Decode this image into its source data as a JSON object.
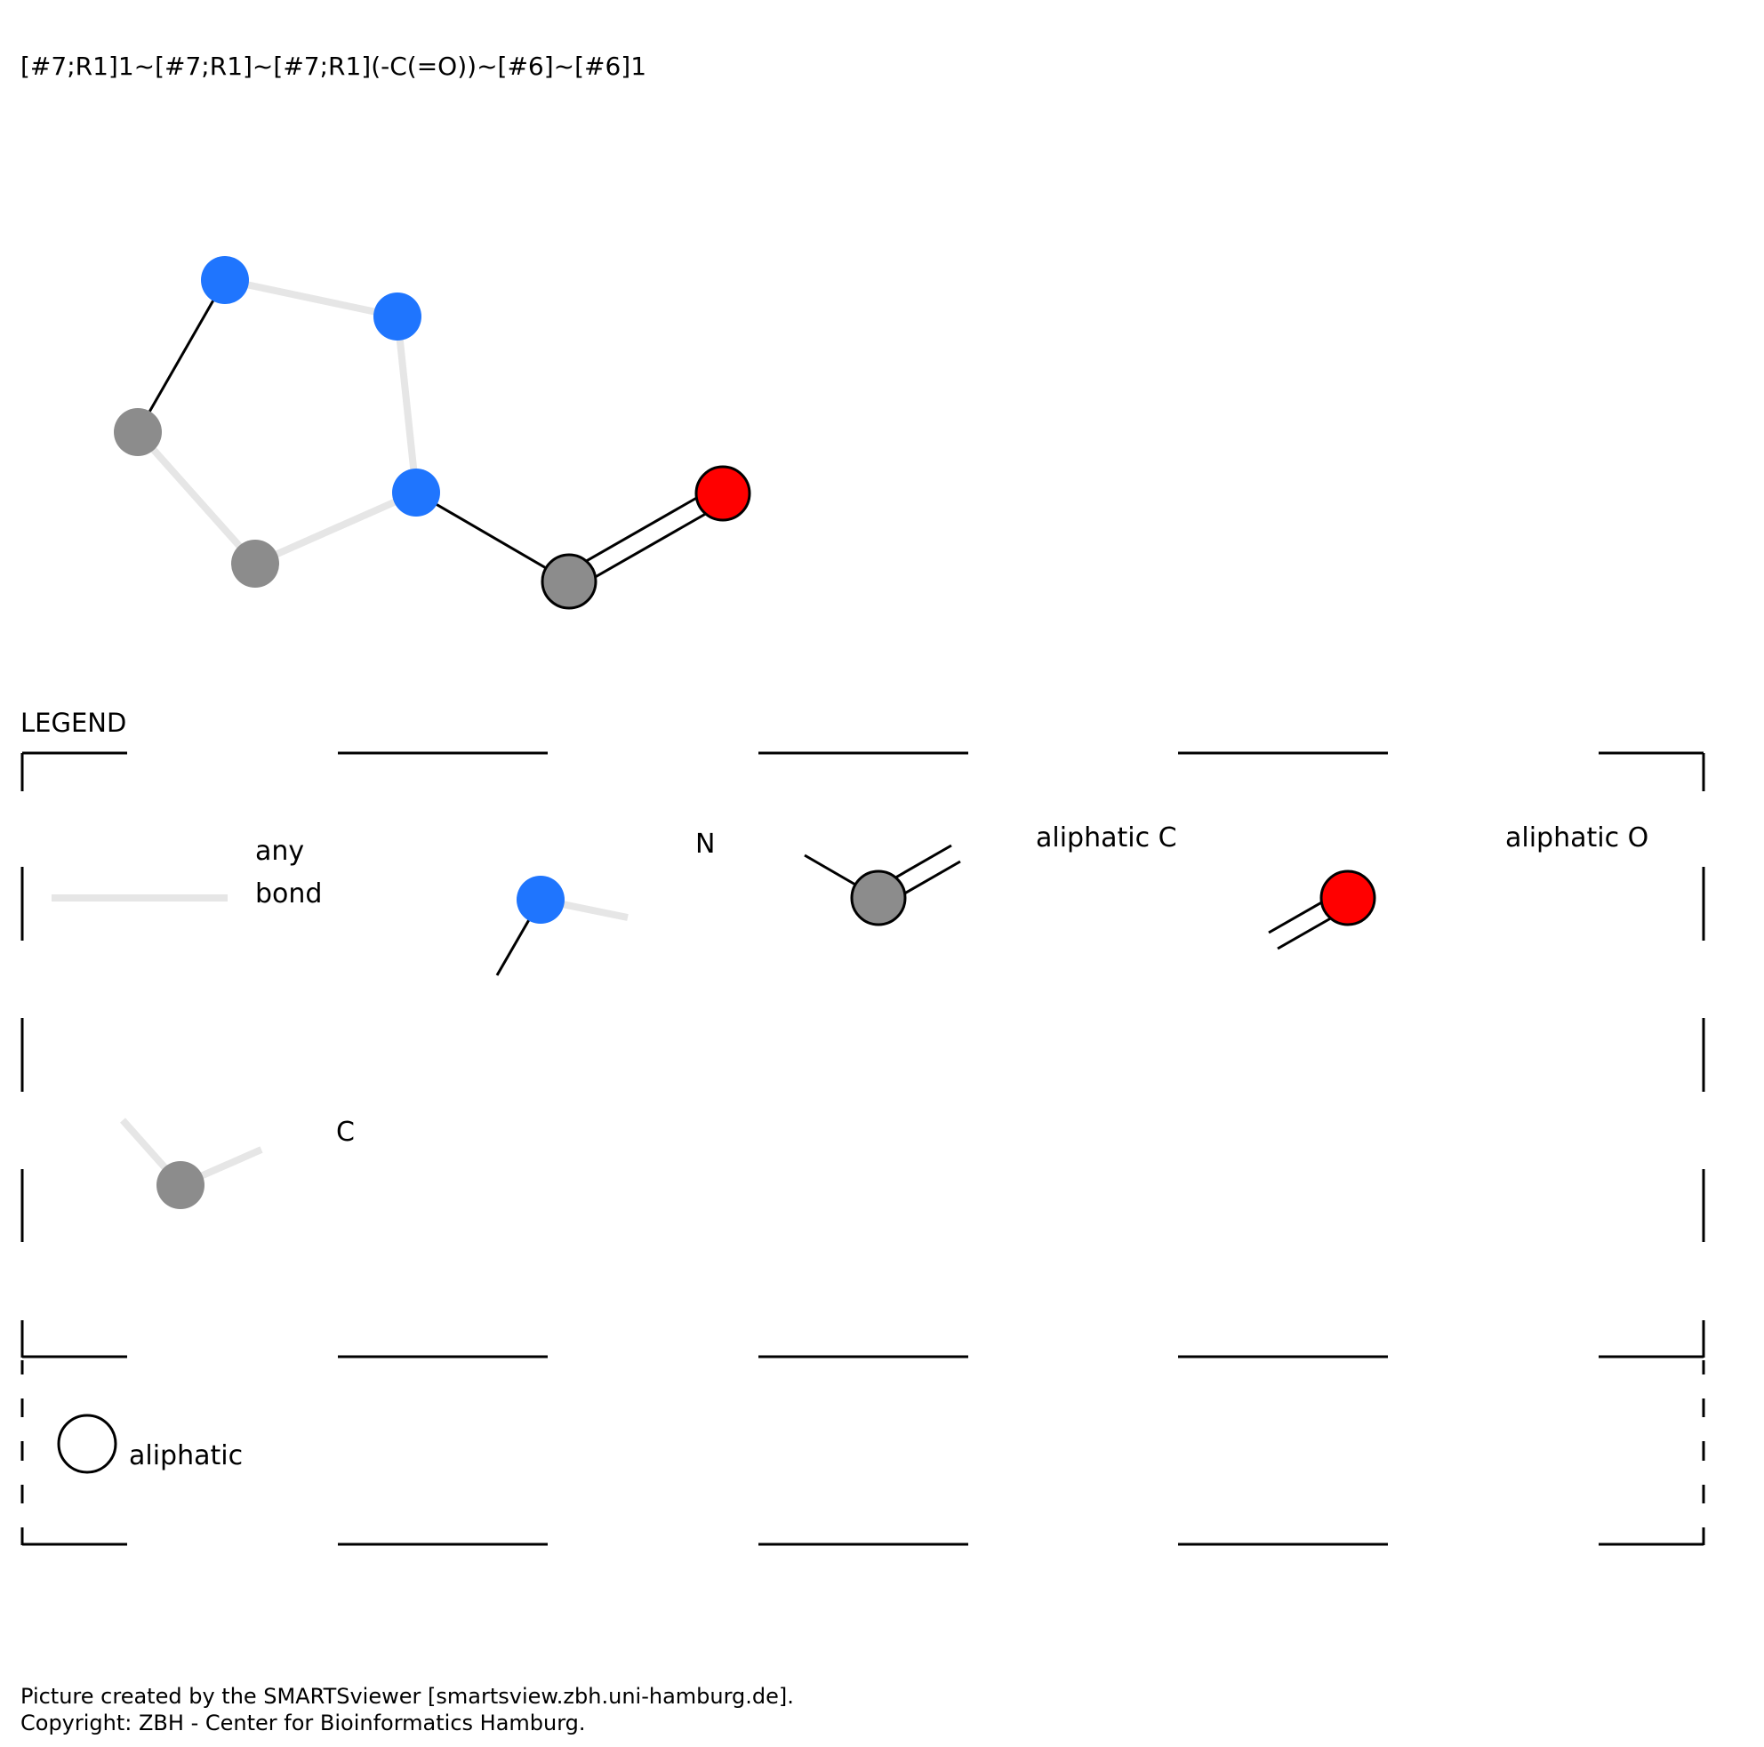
{
  "smarts": "[#7;R1]1~[#7;R1]~[#7;R1](-C(=O))~[#6]~[#6]1",
  "legend": {
    "title": "LEGEND",
    "any_bond_line1": "any",
    "any_bond_line2": "bond",
    "n_label": "N",
    "aliphatic_c_label": "aliphatic C",
    "aliphatic_o_label": "aliphatic O",
    "c_label": "C",
    "aliphatic_label": "aliphatic"
  },
  "colors": {
    "nitrogen": "#1f75fe",
    "carbon": "#8c8c8c",
    "oxygen": "#ff0000",
    "any_bond": "#e6e6e6",
    "single_bond": "#000000",
    "outline": "#000000"
  },
  "molecule": {
    "atoms": [
      {
        "element": "N",
        "in_ring": true
      },
      {
        "element": "N",
        "in_ring": true
      },
      {
        "element": "N",
        "in_ring": true
      },
      {
        "element": "C",
        "in_ring": true
      },
      {
        "element": "C",
        "in_ring": true
      },
      {
        "element": "C",
        "aliphatic": true
      },
      {
        "element": "O",
        "aliphatic": true
      }
    ],
    "bonds": [
      {
        "from": 1,
        "to": 2,
        "type": "any"
      },
      {
        "from": 2,
        "to": 3,
        "type": "any"
      },
      {
        "from": 3,
        "to": 5,
        "type": "any"
      },
      {
        "from": 5,
        "to": 4,
        "type": "any"
      },
      {
        "from": 4,
        "to": 1,
        "type": "single"
      },
      {
        "from": 3,
        "to": 6,
        "type": "single"
      },
      {
        "from": 6,
        "to": 7,
        "type": "double"
      }
    ]
  },
  "footer": {
    "line1": "Picture created by the SMARTSviewer [smartsview.zbh.uni-hamburg.de].",
    "line2": "Copyright: ZBH - Center for Bioinformatics Hamburg."
  }
}
